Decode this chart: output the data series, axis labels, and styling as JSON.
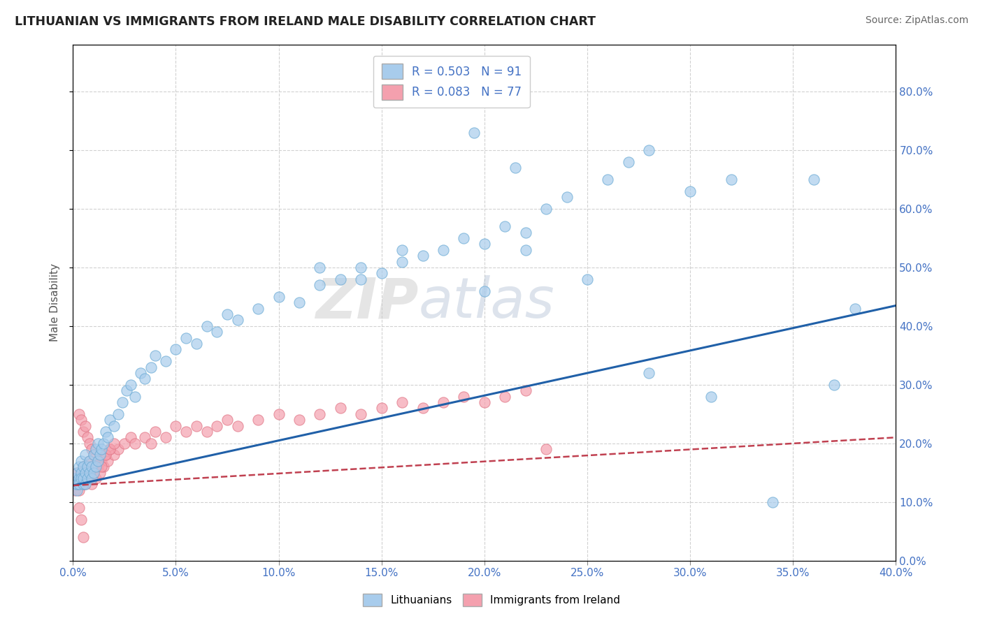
{
  "title": "LITHUANIAN VS IMMIGRANTS FROM IRELAND MALE DISABILITY CORRELATION CHART",
  "source": "Source: ZipAtlas.com",
  "ylabel": "Male Disability",
  "xlim": [
    0.0,
    0.4
  ],
  "ylim": [
    0.0,
    0.88
  ],
  "xticks": [
    0.0,
    0.05,
    0.1,
    0.15,
    0.2,
    0.25,
    0.3,
    0.35,
    0.4
  ],
  "yticks": [
    0.0,
    0.1,
    0.2,
    0.3,
    0.4,
    0.5,
    0.6,
    0.7,
    0.8
  ],
  "blue_R": 0.503,
  "blue_N": 91,
  "pink_R": 0.083,
  "pink_N": 77,
  "blue_color": "#A8CCEC",
  "pink_color": "#F4A0AE",
  "blue_edge_color": "#6AAAD4",
  "pink_edge_color": "#E07585",
  "blue_line_color": "#2060A8",
  "pink_line_color": "#C04050",
  "grid_color": "#CCCCCC",
  "background_color": "#FFFFFF",
  "blue_trend_x": [
    0.0,
    0.4
  ],
  "blue_trend_y": [
    0.128,
    0.435
  ],
  "pink_trend_x": [
    0.0,
    0.4
  ],
  "pink_trend_y": [
    0.128,
    0.21
  ],
  "blue_scatter_x": [
    0.001,
    0.001,
    0.002,
    0.002,
    0.002,
    0.003,
    0.003,
    0.003,
    0.004,
    0.004,
    0.004,
    0.005,
    0.005,
    0.005,
    0.006,
    0.006,
    0.006,
    0.007,
    0.007,
    0.008,
    0.008,
    0.009,
    0.009,
    0.01,
    0.01,
    0.011,
    0.011,
    0.012,
    0.012,
    0.013,
    0.014,
    0.015,
    0.016,
    0.017,
    0.018,
    0.02,
    0.022,
    0.024,
    0.026,
    0.028,
    0.03,
    0.033,
    0.035,
    0.038,
    0.04,
    0.045,
    0.05,
    0.055,
    0.06,
    0.065,
    0.07,
    0.075,
    0.08,
    0.09,
    0.1,
    0.11,
    0.12,
    0.13,
    0.14,
    0.15,
    0.16,
    0.17,
    0.18,
    0.19,
    0.2,
    0.21,
    0.22,
    0.23,
    0.24,
    0.26,
    0.27,
    0.28,
    0.3,
    0.32,
    0.34,
    0.36,
    0.38,
    0.12,
    0.14,
    0.16,
    0.2,
    0.22,
    0.25,
    0.28,
    0.31,
    0.37,
    0.195,
    0.215
  ],
  "blue_scatter_y": [
    0.13,
    0.14,
    0.12,
    0.15,
    0.13,
    0.14,
    0.16,
    0.13,
    0.15,
    0.14,
    0.17,
    0.13,
    0.16,
    0.14,
    0.15,
    0.18,
    0.13,
    0.16,
    0.14,
    0.15,
    0.17,
    0.14,
    0.16,
    0.15,
    0.18,
    0.16,
    0.19,
    0.17,
    0.2,
    0.18,
    0.19,
    0.2,
    0.22,
    0.21,
    0.24,
    0.23,
    0.25,
    0.27,
    0.29,
    0.3,
    0.28,
    0.32,
    0.31,
    0.33,
    0.35,
    0.34,
    0.36,
    0.38,
    0.37,
    0.4,
    0.39,
    0.42,
    0.41,
    0.43,
    0.45,
    0.44,
    0.47,
    0.48,
    0.5,
    0.49,
    0.51,
    0.52,
    0.53,
    0.55,
    0.54,
    0.57,
    0.56,
    0.6,
    0.62,
    0.65,
    0.68,
    0.7,
    0.63,
    0.65,
    0.1,
    0.65,
    0.43,
    0.5,
    0.48,
    0.53,
    0.46,
    0.53,
    0.48,
    0.32,
    0.28,
    0.3,
    0.73,
    0.67
  ],
  "pink_scatter_x": [
    0.001,
    0.001,
    0.002,
    0.002,
    0.002,
    0.003,
    0.003,
    0.003,
    0.004,
    0.004,
    0.005,
    0.005,
    0.005,
    0.006,
    0.006,
    0.007,
    0.007,
    0.008,
    0.008,
    0.009,
    0.01,
    0.011,
    0.012,
    0.013,
    0.014,
    0.015,
    0.016,
    0.017,
    0.018,
    0.02,
    0.022,
    0.025,
    0.028,
    0.03,
    0.035,
    0.038,
    0.04,
    0.045,
    0.05,
    0.055,
    0.06,
    0.065,
    0.07,
    0.075,
    0.08,
    0.09,
    0.1,
    0.11,
    0.12,
    0.13,
    0.14,
    0.15,
    0.16,
    0.17,
    0.18,
    0.19,
    0.2,
    0.21,
    0.22,
    0.003,
    0.004,
    0.005,
    0.006,
    0.007,
    0.008,
    0.009,
    0.01,
    0.012,
    0.014,
    0.016,
    0.018,
    0.02,
    0.003,
    0.004,
    0.005,
    0.23
  ],
  "pink_scatter_y": [
    0.13,
    0.12,
    0.14,
    0.13,
    0.15,
    0.12,
    0.14,
    0.13,
    0.15,
    0.14,
    0.13,
    0.16,
    0.14,
    0.15,
    0.13,
    0.16,
    0.14,
    0.15,
    0.17,
    0.13,
    0.15,
    0.14,
    0.16,
    0.15,
    0.17,
    0.16,
    0.18,
    0.17,
    0.19,
    0.18,
    0.19,
    0.2,
    0.21,
    0.2,
    0.21,
    0.2,
    0.22,
    0.21,
    0.23,
    0.22,
    0.23,
    0.22,
    0.23,
    0.24,
    0.23,
    0.24,
    0.25,
    0.24,
    0.25,
    0.26,
    0.25,
    0.26,
    0.27,
    0.26,
    0.27,
    0.28,
    0.27,
    0.28,
    0.29,
    0.25,
    0.24,
    0.22,
    0.23,
    0.21,
    0.2,
    0.19,
    0.18,
    0.17,
    0.16,
    0.18,
    0.19,
    0.2,
    0.09,
    0.07,
    0.04,
    0.19
  ]
}
